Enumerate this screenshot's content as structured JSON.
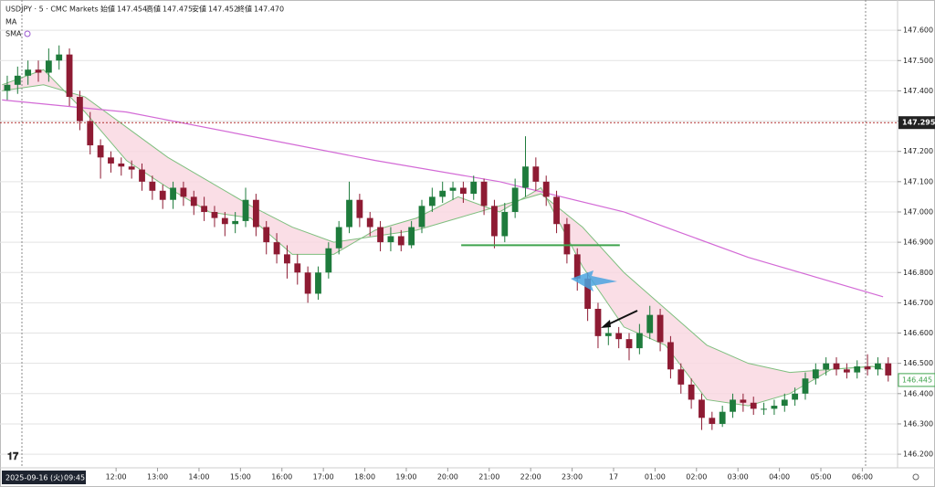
{
  "header": {
    "symbol": "USDJPY · 5 · CMC Markets",
    "open_label": "始値",
    "open": "147.454",
    "high_label": "高値",
    "high": "147.475",
    "low_label": "安値",
    "low": "147.452",
    "close_label": "終値",
    "close": "147.470",
    "ma": "MA",
    "sma": "SMA"
  },
  "chart_data": {
    "type": "candlestick",
    "xlim": [
      -0.2,
      86.4
    ],
    "ylim": [
      146.155,
      147.7
    ],
    "yticks": [
      {
        "value": 146.2,
        "label": "146.200"
      },
      {
        "value": 146.3,
        "label": "146.300"
      },
      {
        "value": 146.4,
        "label": "146.400"
      },
      {
        "value": 146.5,
        "label": "146.500"
      },
      {
        "value": 146.6,
        "label": "146.600"
      },
      {
        "value": 146.7,
        "label": "146.700"
      },
      {
        "value": 146.8,
        "label": "146.800"
      },
      {
        "value": 146.9,
        "label": "146.900"
      },
      {
        "value": 147.0,
        "label": "147.000"
      },
      {
        "value": 147.1,
        "label": "147.100"
      },
      {
        "value": 147.2,
        "label": "147.200"
      },
      {
        "value": 147.3,
        "label": "147.300"
      },
      {
        "value": 147.4,
        "label": "147.400"
      },
      {
        "value": 147.5,
        "label": "147.500"
      },
      {
        "value": 147.6,
        "label": "147.600"
      }
    ],
    "xticks": [
      {
        "value": 11,
        "label": "12:00"
      },
      {
        "value": 15,
        "label": "13:00"
      },
      {
        "value": 19,
        "label": "14:00"
      },
      {
        "value": 23,
        "label": "15:00"
      },
      {
        "value": 27,
        "label": "16:00"
      },
      {
        "value": 31,
        "label": "17:00"
      },
      {
        "value": 35,
        "label": "18:00"
      },
      {
        "value": 39,
        "label": "19:00"
      },
      {
        "value": 43,
        "label": "20:00"
      },
      {
        "value": 47,
        "label": "21:00"
      },
      {
        "value": 51,
        "label": "22:00"
      },
      {
        "value": 55,
        "label": "23:00"
      },
      {
        "value": 59,
        "label": "17"
      },
      {
        "value": 63,
        "label": "01:00"
      },
      {
        "value": 67,
        "label": "02:00"
      },
      {
        "value": 71,
        "label": "03:00"
      },
      {
        "value": 75,
        "label": "04:00"
      },
      {
        "value": 79,
        "label": "05:00"
      },
      {
        "value": 83,
        "label": "06:00"
      }
    ],
    "grid": true,
    "up_color": "#1e7b3c",
    "down_color": "#8e1b33",
    "open": [
      147.4,
      147.42,
      147.45,
      147.47,
      147.46,
      147.5,
      147.52,
      147.38,
      147.3,
      147.22,
      147.18,
      147.16,
      147.15,
      147.14,
      147.1,
      147.07,
      147.04,
      147.08,
      147.05,
      147.02,
      147.0,
      146.98,
      146.96,
      146.97,
      147.04,
      146.95,
      146.9,
      146.86,
      146.83,
      146.8,
      146.73,
      146.8,
      146.88,
      146.95,
      147.04,
      146.98,
      146.95,
      146.9,
      146.92,
      146.89,
      146.95,
      147.02,
      147.05,
      147.07,
      147.08,
      147.06,
      147.1,
      147.02,
      146.92,
      147.0,
      147.08,
      147.15,
      147.1,
      147.05,
      146.96,
      146.86,
      146.78,
      146.68,
      146.59,
      146.6,
      146.58,
      146.55,
      146.6,
      146.66,
      146.57,
      146.48,
      146.43,
      146.38,
      146.32,
      146.3,
      146.34,
      146.38,
      146.37,
      146.35,
      146.35,
      146.36,
      146.38,
      146.4,
      146.45,
      146.48,
      146.5,
      146.48,
      146.47,
      146.49,
      146.48,
      146.5
    ],
    "high": [
      147.45,
      147.48,
      147.5,
      147.5,
      147.54,
      147.55,
      147.54,
      147.4,
      147.33,
      147.24,
      147.2,
      147.18,
      147.17,
      147.16,
      147.12,
      147.09,
      147.1,
      147.1,
      147.07,
      147.05,
      147.02,
      147.0,
      147.0,
      147.08,
      147.06,
      146.97,
      146.93,
      146.89,
      146.86,
      146.82,
      146.82,
      146.9,
      146.97,
      147.1,
      147.06,
      147.0,
      146.97,
      146.95,
      146.94,
      146.97,
      147.04,
      147.08,
      147.1,
      147.1,
      147.1,
      147.12,
      147.11,
      147.04,
      147.03,
      147.11,
      147.25,
      147.18,
      147.12,
      147.07,
      146.98,
      146.88,
      146.8,
      146.7,
      146.63,
      146.62,
      146.6,
      146.63,
      146.69,
      146.68,
      146.59,
      146.5,
      146.45,
      146.4,
      146.34,
      146.36,
      146.4,
      146.4,
      146.39,
      146.37,
      146.38,
      146.4,
      146.42,
      146.47,
      146.5,
      146.52,
      146.52,
      146.5,
      146.51,
      146.53,
      146.52,
      146.52
    ],
    "low": [
      147.37,
      147.39,
      147.42,
      147.43,
      147.43,
      147.47,
      147.35,
      147.27,
      147.19,
      147.11,
      147.13,
      147.12,
      147.11,
      147.07,
      147.04,
      147.01,
      147.01,
      147.02,
      146.99,
      146.97,
      146.95,
      146.92,
      146.93,
      146.95,
      146.92,
      146.86,
      146.83,
      146.78,
      146.76,
      146.7,
      146.71,
      146.78,
      146.86,
      146.93,
      146.95,
      146.92,
      146.87,
      146.87,
      146.87,
      146.88,
      146.93,
      147.0,
      147.03,
      147.04,
      147.03,
      147.04,
      146.99,
      146.88,
      146.9,
      146.98,
      147.05,
      147.07,
      147.02,
      146.93,
      146.83,
      146.74,
      146.64,
      146.55,
      146.56,
      146.55,
      146.51,
      146.53,
      146.58,
      146.54,
      146.45,
      146.4,
      146.35,
      146.28,
      146.28,
      146.29,
      146.32,
      146.34,
      146.33,
      146.33,
      146.33,
      146.34,
      146.36,
      146.38,
      146.43,
      146.46,
      146.46,
      146.45,
      146.45,
      146.46,
      146.46,
      146.44
    ],
    "close": [
      147.42,
      147.45,
      147.47,
      147.46,
      147.5,
      147.52,
      147.38,
      147.3,
      147.22,
      147.18,
      147.16,
      147.15,
      147.14,
      147.1,
      147.07,
      147.04,
      147.08,
      147.05,
      147.02,
      147.0,
      146.98,
      146.96,
      146.97,
      147.04,
      146.95,
      146.9,
      146.86,
      146.83,
      146.8,
      146.73,
      146.8,
      146.88,
      146.95,
      147.04,
      146.98,
      146.95,
      146.9,
      146.92,
      146.89,
      146.95,
      147.02,
      147.05,
      147.07,
      147.08,
      147.06,
      147.1,
      147.02,
      146.92,
      147.0,
      147.08,
      147.15,
      147.1,
      147.05,
      146.96,
      146.86,
      146.78,
      146.68,
      146.59,
      146.6,
      146.58,
      146.55,
      146.6,
      146.66,
      146.57,
      146.48,
      146.43,
      146.38,
      146.32,
      146.3,
      146.34,
      146.38,
      146.37,
      146.35,
      146.35,
      146.36,
      146.38,
      146.4,
      146.45,
      146.48,
      146.5,
      146.48,
      146.47,
      146.49,
      146.48,
      146.5,
      146.46
    ],
    "ribbon": {
      "x": [
        0,
        4,
        8,
        12,
        16,
        20,
        24,
        28,
        32,
        36,
        40,
        44,
        48,
        52,
        56,
        60,
        64,
        68,
        72,
        76,
        80,
        84,
        85
      ],
      "fast": [
        147.42,
        147.47,
        147.33,
        147.17,
        147.08,
        147.0,
        146.98,
        146.86,
        146.86,
        146.94,
        146.98,
        147.05,
        147.0,
        147.08,
        146.82,
        146.62,
        146.56,
        146.38,
        146.36,
        146.4,
        146.48,
        146.49,
        146.48
      ],
      "slow": [
        147.4,
        147.42,
        147.38,
        147.28,
        147.18,
        147.1,
        147.02,
        146.95,
        146.9,
        146.92,
        146.94,
        146.98,
        147.02,
        147.06,
        146.95,
        146.8,
        146.68,
        146.56,
        146.5,
        146.47,
        146.48,
        146.49,
        146.48
      ],
      "line_color": "#7fbf7f",
      "fill_color": "#f9d6e0"
    },
    "sma": {
      "x": [
        0,
        12,
        24,
        36,
        48,
        60,
        72,
        85
      ],
      "values": [
        147.37,
        147.33,
        147.25,
        147.17,
        147.1,
        147.0,
        146.85,
        146.72
      ],
      "color": "#d36ad6"
    },
    "level": {
      "value": 146.89,
      "x": [
        44.3,
        59.6
      ],
      "color": "#3fa34d"
    },
    "crosshair_price": 147.295,
    "last_price": 146.445,
    "cursor_date": "2025-09-16 (火)",
    "cursor_time": "09:45"
  }
}
